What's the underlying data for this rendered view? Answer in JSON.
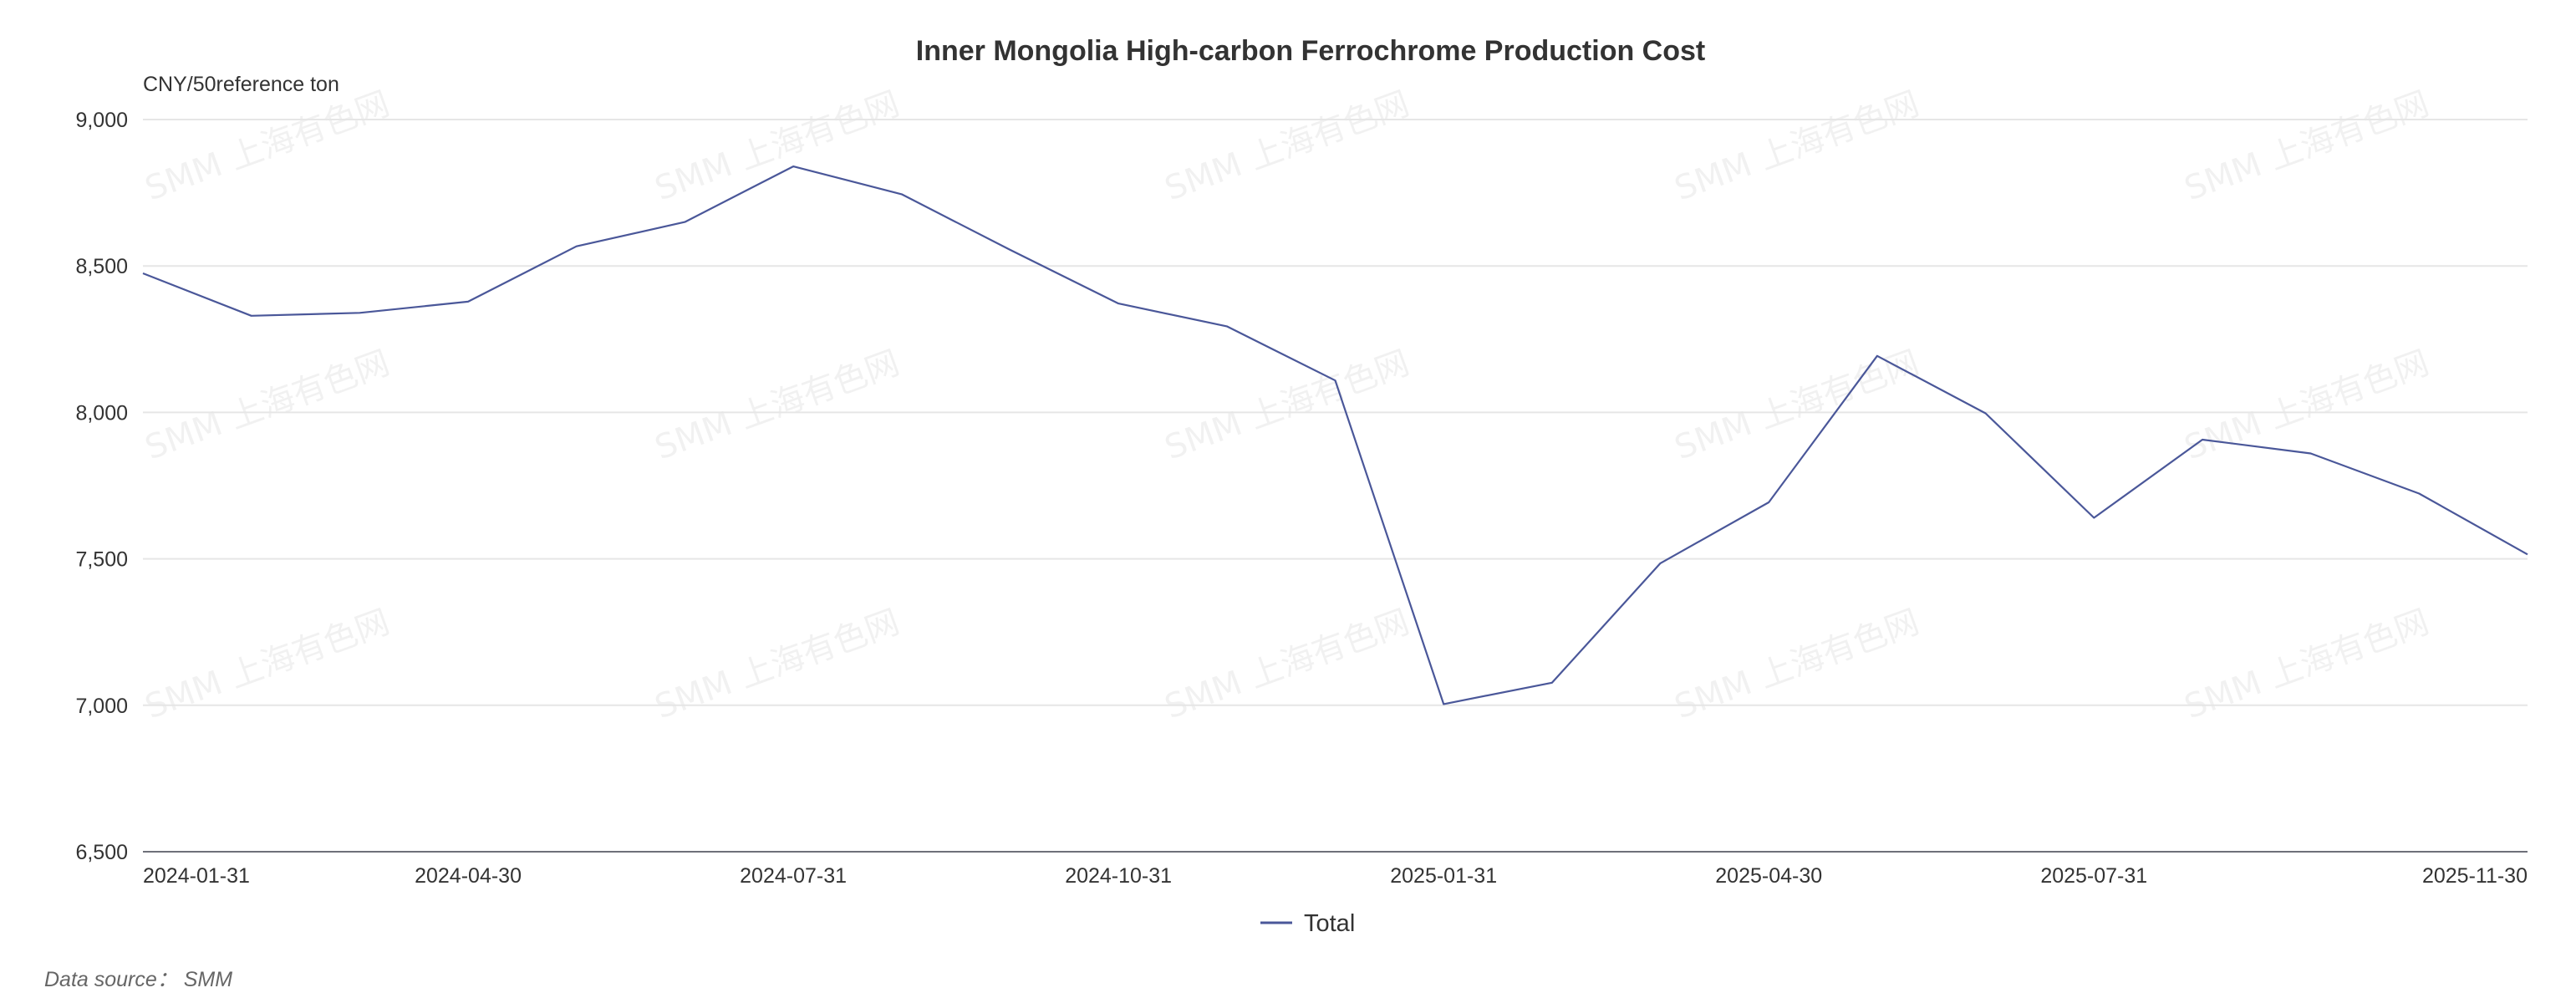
{
  "chart_data": {
    "type": "line",
    "title": "Inner Mongolia High-carbon Ferrochrome Production Cost",
    "ylabel": "CNY/50reference ton",
    "xlabel": "",
    "ylim": [
      6500,
      9000
    ],
    "yticks": [
      6500,
      7000,
      7500,
      8000,
      8500,
      9000
    ],
    "ytick_labels": [
      "6,500",
      "7,000",
      "7,500",
      "8,000",
      "8,500",
      "9,000"
    ],
    "x": [
      "2024-01-31",
      "2024-02-29",
      "2024-03-31",
      "2024-04-30",
      "2024-05-31",
      "2024-06-30",
      "2024-07-31",
      "2024-08-31",
      "2024-09-30",
      "2024-10-31",
      "2024-11-30",
      "2024-12-31",
      "2025-01-31",
      "2025-02-28",
      "2025-03-31",
      "2025-04-30",
      "2025-05-31",
      "2025-06-30",
      "2025-07-31",
      "2025-08-31",
      "2025-09-30",
      "2025-10-31",
      "2025-11-30"
    ],
    "xtick_labels": [
      "2024-01-31",
      "2024-04-30",
      "2024-07-31",
      "2024-10-31",
      "2025-01-31",
      "2025-04-30",
      "2025-07-31",
      "2025-11-30"
    ],
    "xtick_indices": [
      0,
      3,
      6,
      9,
      12,
      15,
      18,
      22
    ],
    "series": [
      {
        "name": "Total",
        "color": "#4a5799",
        "values": [
          8475,
          8330,
          8340,
          8378,
          8567,
          8650,
          8840,
          8745,
          8555,
          8372,
          8294,
          8109,
          7004,
          7077,
          7485,
          7693,
          8193,
          7997,
          7640,
          7907,
          7860,
          7723,
          7515
        ]
      }
    ],
    "grid": true,
    "legend_position": "bottom-center"
  },
  "footer": {
    "source_label": "Data source： SMM"
  },
  "watermark": {
    "text": "SMM 上海有色网"
  },
  "colors": {
    "line": "#4a5799",
    "grid": "#e6e6e6",
    "axis": "#6e7079"
  }
}
